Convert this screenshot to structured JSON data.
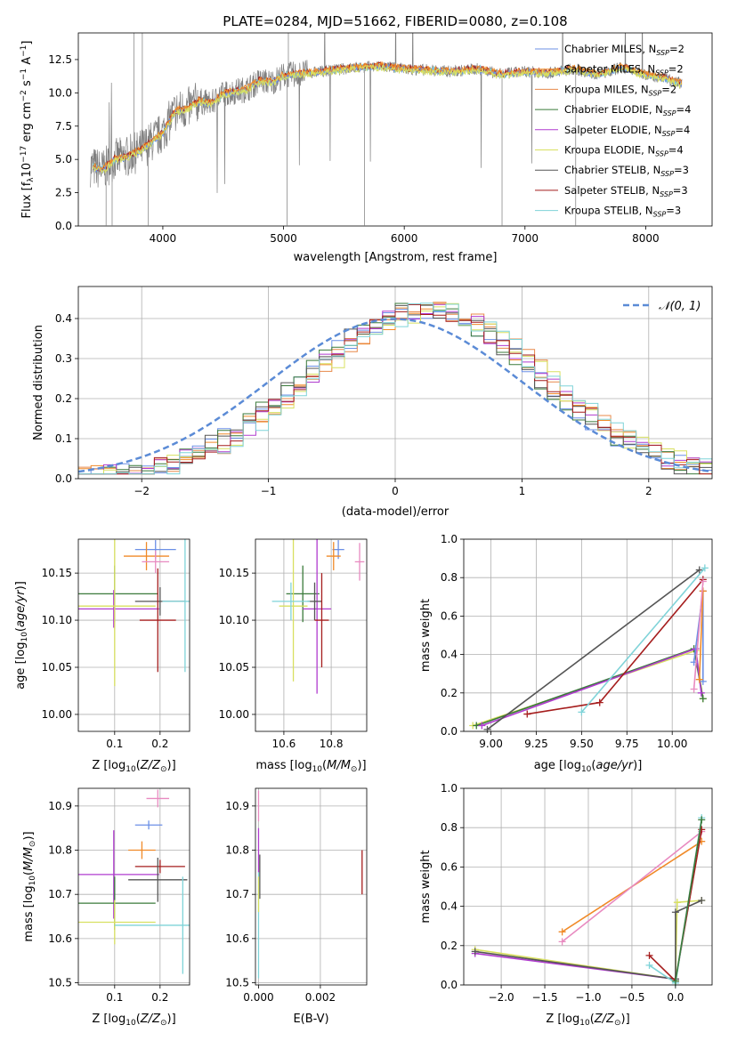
{
  "figure": {
    "title": "PLATE=0284, MJD=51662, FIBERID=0080, z=0.108"
  },
  "colors": {
    "chabrier_miles": "#6b8fe6",
    "salpeter_miles": "#f08a28",
    "kroupa_miles": "#e8894a",
    "chabrier_elodie": "#3a7a3a",
    "salpeter_elodie": "#b03ccf",
    "kroupa_elodie": "#d8e060",
    "chabrier_stelib": "#555555",
    "salpeter_stelib": "#a51d1d",
    "kroupa_stelib": "#7fd3d8",
    "normal_line": "#5b8bd6",
    "pink": "#e88ac0"
  },
  "legend": {
    "entries": [
      {
        "main": "Chabrier MILES, N",
        "sub": "SSP",
        "tail": "=2",
        "color": "#6b8fe6"
      },
      {
        "main": "Salpeter MILES, N",
        "sub": "SSP",
        "tail": "=2",
        "color": "#f08a28"
      },
      {
        "main": "Kroupa MILES, N",
        "sub": "SSP",
        "tail": "=2",
        "color": "#e8894a"
      },
      {
        "main": "Chabrier ELODIE, N",
        "sub": "SSP",
        "tail": "=4",
        "color": "#3a7a3a"
      },
      {
        "main": "Salpeter ELODIE, N",
        "sub": "SSP",
        "tail": "=4",
        "color": "#b03ccf"
      },
      {
        "main": "Kroupa ELODIE, N",
        "sub": "SSP",
        "tail": "=4",
        "color": "#d8e060"
      },
      {
        "main": "Chabrier STELIB, N",
        "sub": "SSP",
        "tail": "=3",
        "color": "#555555"
      },
      {
        "main": "Salpeter STELIB, N",
        "sub": "SSP",
        "tail": "=3",
        "color": "#a51d1d"
      },
      {
        "main": "Kroupa STELIB, N",
        "sub": "SSP",
        "tail": "=3",
        "color": "#7fd3d8"
      }
    ],
    "normal_label": "𝒩(0, 1)"
  },
  "chart_data": [
    {
      "id": "spectrum",
      "type": "line",
      "xlabel": "wavelength [Angstrom, rest frame]",
      "ylabel": "Flux [f_λ 10^-17 erg cm^-2 s^-1 A^-1]",
      "xlim": [
        3300,
        8550
      ],
      "ylim": [
        0,
        14.5
      ],
      "xticks": [
        "4000",
        "5000",
        "6000",
        "7000",
        "8000"
      ],
      "yticks": [
        "0.0",
        "2.5",
        "5.0",
        "7.5",
        "10.0",
        "12.5"
      ],
      "continuum": {
        "x": [
          3400,
          3500,
          3600,
          3700,
          3800,
          3900,
          4000,
          4100,
          4200,
          4300,
          4400,
          4500,
          4600,
          4700,
          4800,
          4900,
          5000,
          5200,
          5400,
          5600,
          5800,
          6000,
          6200,
          6400,
          6600,
          6800,
          7000,
          7200,
          7400,
          7600,
          7800,
          8000,
          8200,
          8300
        ],
        "y": [
          4.5,
          4.2,
          5.0,
          5.2,
          5.6,
          6.3,
          7.0,
          8.6,
          8.8,
          9.4,
          9.2,
          9.9,
          10.1,
          10.3,
          10.9,
          10.8,
          11.3,
          11.5,
          11.7,
          11.9,
          12.0,
          11.8,
          11.7,
          11.6,
          11.8,
          11.4,
          11.6,
          11.5,
          11.8,
          11.4,
          11.9,
          11.4,
          11.0,
          10.7
        ]
      }
    },
    {
      "id": "residuals",
      "type": "bar",
      "xlabel": "(data-model)/error",
      "ylabel": "Normed distribution",
      "xlim": [
        -2.5,
        2.5
      ],
      "ylim": [
        0,
        0.48
      ],
      "xticks": [
        "−2",
        "−1",
        "0",
        "1",
        "2"
      ],
      "yticks": [
        "0.0",
        "0.1",
        "0.2",
        "0.3",
        "0.4"
      ],
      "bin_width": 0.1,
      "reference": "normal(0,1)"
    },
    {
      "id": "age_vs_Z",
      "type": "scatter",
      "xlabel": "Z [log10(Z/Z⊙)]",
      "ylabel": "age  [log10(age/yr)]",
      "xlim": [
        0.02,
        0.265
      ],
      "ylim": [
        9.982,
        10.186
      ],
      "xticks": [
        "0.1",
        "0.2"
      ],
      "yticks": [
        "10.00",
        "10.05",
        "10.10",
        "10.15"
      ],
      "points": [
        {
          "x": 0.19,
          "y": 10.175,
          "xerr": 0.045,
          "yerr": 0.01,
          "c": "chabrier_miles"
        },
        {
          "x": 0.17,
          "y": 10.168,
          "xerr": 0.05,
          "yerr": 0.015,
          "c": "salpeter_miles"
        },
        {
          "x": 0.19,
          "y": 10.162,
          "xerr": 0.03,
          "yerr": 0.012,
          "c": "pink"
        },
        {
          "x": 0.1,
          "y": 10.128,
          "xerr": 0.095,
          "yerr": 0.03,
          "c": "chabrier_elodie"
        },
        {
          "x": 0.098,
          "y": 10.112,
          "xerr": 0.1,
          "yerr": 0.02,
          "c": "salpeter_elodie"
        },
        {
          "x": 0.1,
          "y": 10.115,
          "xerr": 0.09,
          "yerr": 0.085,
          "c": "kroupa_elodie"
        },
        {
          "x": 0.2,
          "y": 10.12,
          "xerr": 0.055,
          "yerr": 0.015,
          "c": "chabrier_stelib"
        },
        {
          "x": 0.195,
          "y": 10.1,
          "xerr": 0.04,
          "yerr": 0.055,
          "c": "salpeter_stelib"
        },
        {
          "x": 0.255,
          "y": 10.12,
          "xerr": 0.05,
          "yerr": 0.075,
          "c": "kroupa_stelib"
        }
      ]
    },
    {
      "id": "age_vs_mass",
      "type": "scatter",
      "xlabel": "mass [log10(M/M⊙)]",
      "ylabel": "",
      "xlim": [
        10.48,
        10.95
      ],
      "ylim": [
        9.982,
        10.186
      ],
      "xticks": [
        "10.6",
        "10.8"
      ],
      "yticks": [
        "10.00",
        "10.05",
        "10.10",
        "10.15"
      ],
      "points": [
        {
          "x": 10.83,
          "y": 10.175,
          "xerr": 0.025,
          "yerr": 0.01,
          "c": "chabrier_miles"
        },
        {
          "x": 10.81,
          "y": 10.168,
          "xerr": 0.03,
          "yerr": 0.015,
          "c": "salpeter_miles"
        },
        {
          "x": 10.92,
          "y": 10.162,
          "xerr": 0.02,
          "yerr": 0.02,
          "c": "pink"
        },
        {
          "x": 10.68,
          "y": 10.128,
          "xerr": 0.07,
          "yerr": 0.03,
          "c": "chabrier_elodie"
        },
        {
          "x": 10.74,
          "y": 10.112,
          "xerr": 0.06,
          "yerr": 0.09,
          "c": "salpeter_elodie"
        },
        {
          "x": 10.64,
          "y": 10.115,
          "xerr": 0.06,
          "yerr": 0.08,
          "c": "kroupa_elodie"
        },
        {
          "x": 10.73,
          "y": 10.12,
          "xerr": 0.03,
          "yerr": 0.02,
          "c": "chabrier_stelib"
        },
        {
          "x": 10.76,
          "y": 10.1,
          "xerr": 0.03,
          "yerr": 0.05,
          "c": "salpeter_stelib"
        },
        {
          "x": 10.63,
          "y": 10.12,
          "xerr": 0.08,
          "yerr": 0.02,
          "c": "kroupa_stelib"
        }
      ]
    },
    {
      "id": "weight_vs_age",
      "type": "line",
      "xlabel": "age  [log10(age/yr)]",
      "ylabel": "mass weight",
      "xlim": [
        8.85,
        10.22
      ],
      "ylim": [
        0,
        1
      ],
      "xticks": [
        "9.00",
        "9.25",
        "9.50",
        "9.75",
        "10.00"
      ],
      "yticks": [
        "0.0",
        "0.2",
        "0.4",
        "0.6",
        "0.8",
        "1.0"
      ],
      "series": [
        {
          "c": "kroupa_elodie",
          "x": [
            8.9,
            10.13,
            10.17
          ],
          "y": [
            0.03,
            0.42,
            0.17
          ]
        },
        {
          "c": "chabrier_elodie",
          "x": [
            8.92,
            10.12,
            10.17
          ],
          "y": [
            0.03,
            0.43,
            0.17
          ]
        },
        {
          "c": "salpeter_elodie",
          "x": [
            8.95,
            10.13,
            10.16
          ],
          "y": [
            0.03,
            0.43,
            0.2
          ]
        },
        {
          "c": "chabrier_stelib",
          "x": [
            8.98,
            10.15
          ],
          "y": [
            0.01,
            0.84
          ]
        },
        {
          "c": "salpeter_stelib",
          "x": [
            9.2,
            9.6,
            10.17
          ],
          "y": [
            0.09,
            0.15,
            0.79
          ]
        },
        {
          "c": "kroupa_stelib",
          "x": [
            9.5,
            10.18
          ],
          "y": [
            0.1,
            0.85
          ]
        },
        {
          "c": "chabrier_miles",
          "x": [
            10.12,
            10.17,
            10.17
          ],
          "y": [
            0.36,
            0.73,
            0.26
          ]
        },
        {
          "c": "salpeter_miles",
          "x": [
            10.15,
            10.17
          ],
          "y": [
            0.27,
            0.73
          ]
        },
        {
          "c": "pink",
          "x": [
            10.12,
            10.17
          ],
          "y": [
            0.22,
            0.78
          ]
        }
      ]
    },
    {
      "id": "mass_vs_Z",
      "type": "scatter",
      "xlabel": "Z [log10(Z/Z⊙)]",
      "ylabel": "mass [log10(M/M⊙)]",
      "xlim": [
        0.02,
        0.265
      ],
      "ylim": [
        10.495,
        10.94
      ],
      "xticks": [
        "0.1",
        "0.2"
      ],
      "yticks": [
        "10.5",
        "10.6",
        "10.7",
        "10.8",
        "10.9"
      ],
      "points": [
        {
          "x": 0.195,
          "y": 10.917,
          "xerr": 0.025,
          "yerr": 0.02,
          "c": "pink"
        },
        {
          "x": 0.175,
          "y": 10.857,
          "xerr": 0.03,
          "yerr": 0.01,
          "c": "chabrier_miles"
        },
        {
          "x": 0.16,
          "y": 10.8,
          "xerr": 0.03,
          "yerr": 0.02,
          "c": "salpeter_miles"
        },
        {
          "x": 0.2,
          "y": 10.763,
          "xerr": 0.055,
          "yerr": 0.015,
          "c": "salpeter_stelib"
        },
        {
          "x": 0.098,
          "y": 10.745,
          "xerr": 0.1,
          "yerr": 0.1,
          "c": "salpeter_elodie"
        },
        {
          "x": 0.195,
          "y": 10.733,
          "xerr": 0.065,
          "yerr": 0.05,
          "c": "chabrier_stelib"
        },
        {
          "x": 0.1,
          "y": 10.68,
          "xerr": 0.09,
          "yerr": 0.06,
          "c": "chabrier_elodie"
        },
        {
          "x": 0.1,
          "y": 10.637,
          "xerr": 0.09,
          "yerr": 0.05,
          "c": "kroupa_elodie"
        },
        {
          "x": 0.25,
          "y": 10.63,
          "xerr": 0.15,
          "yerr": 0.11,
          "c": "kroupa_stelib"
        }
      ]
    },
    {
      "id": "mass_vs_ebv",
      "type": "scatter",
      "xlabel": "E(B-V)",
      "ylabel": "",
      "xlim": [
        -0.0001,
        0.0035
      ],
      "ylim": [
        10.495,
        10.94
      ],
      "xticks": [
        "0.000",
        "0.002"
      ],
      "yticks": [
        "10.5",
        "10.6",
        "10.7",
        "10.8",
        "10.9"
      ],
      "points": [
        {
          "x": 0.0,
          "y": 10.9,
          "yerr": 0.035,
          "c": "pink"
        },
        {
          "x": 0.0,
          "y": 10.8,
          "yerr": 0.05,
          "c": "salpeter_elodie"
        },
        {
          "x": 4e-05,
          "y": 10.74,
          "yerr": 0.05,
          "c": "chabrier_stelib"
        },
        {
          "x": 0.0,
          "y": 10.63,
          "yerr": 0.12,
          "c": "kroupa_stelib"
        },
        {
          "x": 0.0,
          "y": 10.7,
          "yerr": 0.04,
          "c": "kroupa_elodie"
        },
        {
          "x": 0.00335,
          "y": 10.75,
          "yerr": 0.05,
          "c": "salpeter_stelib"
        }
      ]
    },
    {
      "id": "weight_vs_Z",
      "type": "line",
      "xlabel": "Z [log10(Z/Z⊙)]",
      "ylabel": "mass weight",
      "xlim": [
        -2.43,
        0.42
      ],
      "ylim": [
        0,
        1
      ],
      "xticks": [
        "−2.0",
        "−1.5",
        "−1.0",
        "−0.5",
        "0.0"
      ],
      "yticks": [
        "0.0",
        "0.2",
        "0.4",
        "0.6",
        "0.8",
        "1.0"
      ],
      "series": [
        {
          "c": "kroupa_elodie",
          "x": [
            -2.3,
            0.0,
            0.02,
            0.3
          ],
          "y": [
            0.18,
            0.03,
            0.42,
            0.43
          ]
        },
        {
          "c": "salpeter_elodie",
          "x": [
            -2.3,
            0.0
          ],
          "y": [
            0.16,
            0.03
          ]
        },
        {
          "c": "chabrier_stelib",
          "x": [
            -2.3,
            0.0,
            0.0,
            0.3
          ],
          "y": [
            0.17,
            0.03,
            0.37,
            0.43
          ]
        },
        {
          "c": "salpeter_miles",
          "x": [
            -1.3,
            0.3
          ],
          "y": [
            0.27,
            0.73
          ]
        },
        {
          "c": "pink",
          "x": [
            -1.3,
            0.3
          ],
          "y": [
            0.22,
            0.78
          ]
        },
        {
          "c": "salpeter_stelib",
          "x": [
            -0.3,
            0.0,
            0.3
          ],
          "y": [
            0.15,
            0.02,
            0.79
          ]
        },
        {
          "c": "kroupa_stelib",
          "x": [
            -0.3,
            0.0,
            0.3
          ],
          "y": [
            0.1,
            0.01,
            0.85
          ]
        },
        {
          "c": "chabrier_elodie",
          "x": [
            0.0,
            0.3
          ],
          "y": [
            0.02,
            0.84
          ]
        }
      ]
    }
  ]
}
